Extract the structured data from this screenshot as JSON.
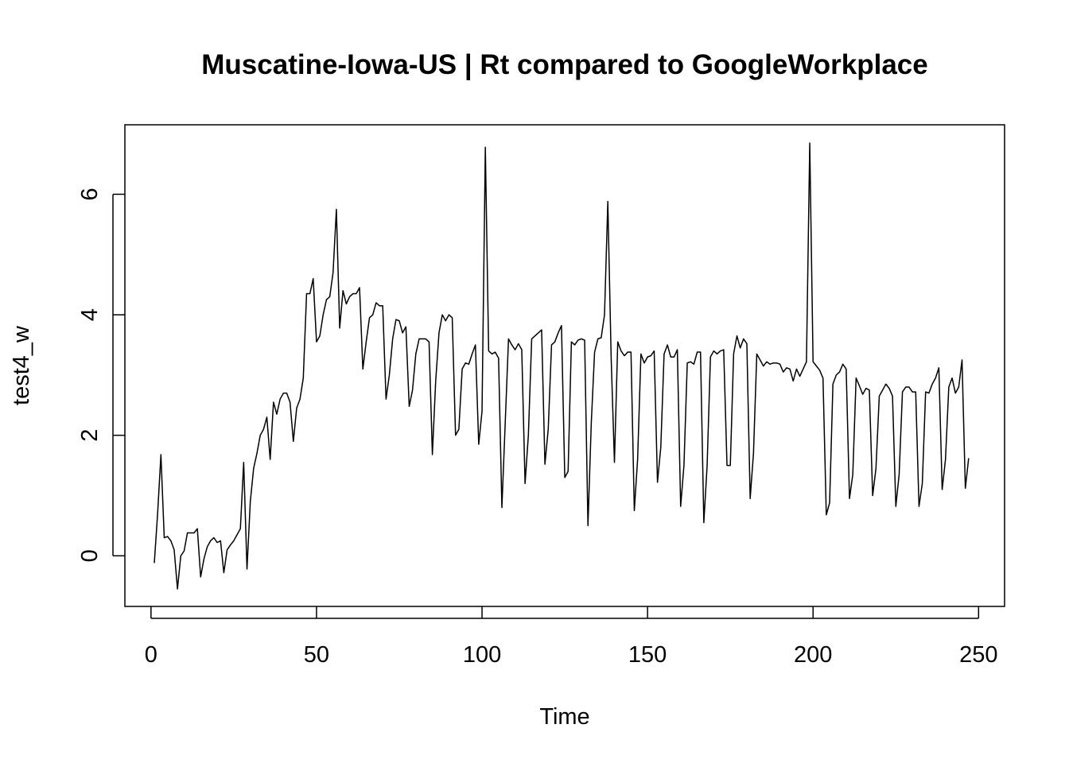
{
  "chart_data": {
    "type": "line",
    "title": "Muscatine-Iowa-US | Rt compared to GoogleWorkplace",
    "xlabel": "Time",
    "ylabel": "test4_w",
    "xlim": [
      1,
      248
    ],
    "ylim": [
      -0.55,
      6.85
    ],
    "xticks": [
      0,
      50,
      100,
      150,
      200,
      250
    ],
    "yticks": [
      0,
      2,
      4,
      6
    ],
    "grid": false,
    "legend": "none",
    "line_color": "#000000",
    "series": [
      {
        "values": [
          -0.12,
          0.7,
          1.68,
          0.3,
          0.32,
          0.25,
          0.1,
          -0.55,
          0.0,
          0.08,
          0.38,
          0.38,
          0.38,
          0.45,
          -0.35,
          -0.05,
          0.15,
          0.25,
          0.3,
          0.22,
          0.25,
          -0.28,
          0.1,
          0.18,
          0.25,
          0.35,
          0.45,
          1.55,
          -0.22,
          0.9,
          1.45,
          1.7,
          2.0,
          2.1,
          2.3,
          1.6,
          2.55,
          2.35,
          2.6,
          2.7,
          2.7,
          2.55,
          1.9,
          2.45,
          2.6,
          2.95,
          4.35,
          4.35,
          4.6,
          3.55,
          3.65,
          4.0,
          4.25,
          4.3,
          4.7,
          5.75,
          3.78,
          4.4,
          4.18,
          4.3,
          4.35,
          4.35,
          4.45,
          3.1,
          3.55,
          3.95,
          4.0,
          4.2,
          4.15,
          4.15,
          2.6,
          3.0,
          3.6,
          3.92,
          3.9,
          3.7,
          3.8,
          2.48,
          2.75,
          3.35,
          3.6,
          3.6,
          3.6,
          3.55,
          1.68,
          2.9,
          3.7,
          4.0,
          3.9,
          4.0,
          3.95,
          2.0,
          2.1,
          3.1,
          3.2,
          3.18,
          3.35,
          3.5,
          1.85,
          2.4,
          6.78,
          3.4,
          3.35,
          3.38,
          3.28,
          0.8,
          2.2,
          3.6,
          3.5,
          3.42,
          3.52,
          3.42,
          1.2,
          2.0,
          3.6,
          3.65,
          3.7,
          3.75,
          1.52,
          2.1,
          3.5,
          3.55,
          3.7,
          3.82,
          1.3,
          1.4,
          3.55,
          3.5,
          3.58,
          3.6,
          3.58,
          0.5,
          2.2,
          3.38,
          3.6,
          3.62,
          4.0,
          5.88,
          3.3,
          1.55,
          3.55,
          3.4,
          3.32,
          3.38,
          3.38,
          0.75,
          1.6,
          3.35,
          3.2,
          3.3,
          3.32,
          3.4,
          1.22,
          1.8,
          3.35,
          3.5,
          3.3,
          3.3,
          3.42,
          0.82,
          1.5,
          3.2,
          3.22,
          3.18,
          3.38,
          3.38,
          0.55,
          1.5,
          3.3,
          3.4,
          3.35,
          3.4,
          3.42,
          1.5,
          1.5,
          3.35,
          3.65,
          3.45,
          3.6,
          3.52,
          0.95,
          1.7,
          3.35,
          3.25,
          3.15,
          3.22,
          3.18,
          3.2,
          3.2,
          3.18,
          3.05,
          3.12,
          3.1,
          2.9,
          3.1,
          2.98,
          3.1,
          3.22,
          6.85,
          3.22,
          3.15,
          3.08,
          2.95,
          0.68,
          0.88,
          2.85,
          3.0,
          3.05,
          3.18,
          3.1,
          0.95,
          1.35,
          2.95,
          2.82,
          2.68,
          2.78,
          2.75,
          1.0,
          1.45,
          2.65,
          2.75,
          2.85,
          2.78,
          2.65,
          0.82,
          1.35,
          2.72,
          2.8,
          2.8,
          2.72,
          2.72,
          0.82,
          1.2,
          2.72,
          2.7,
          2.85,
          2.95,
          3.12,
          1.1,
          1.6,
          2.8,
          2.95,
          2.7,
          2.8,
          3.25,
          1.12,
          1.62
        ]
      }
    ]
  }
}
